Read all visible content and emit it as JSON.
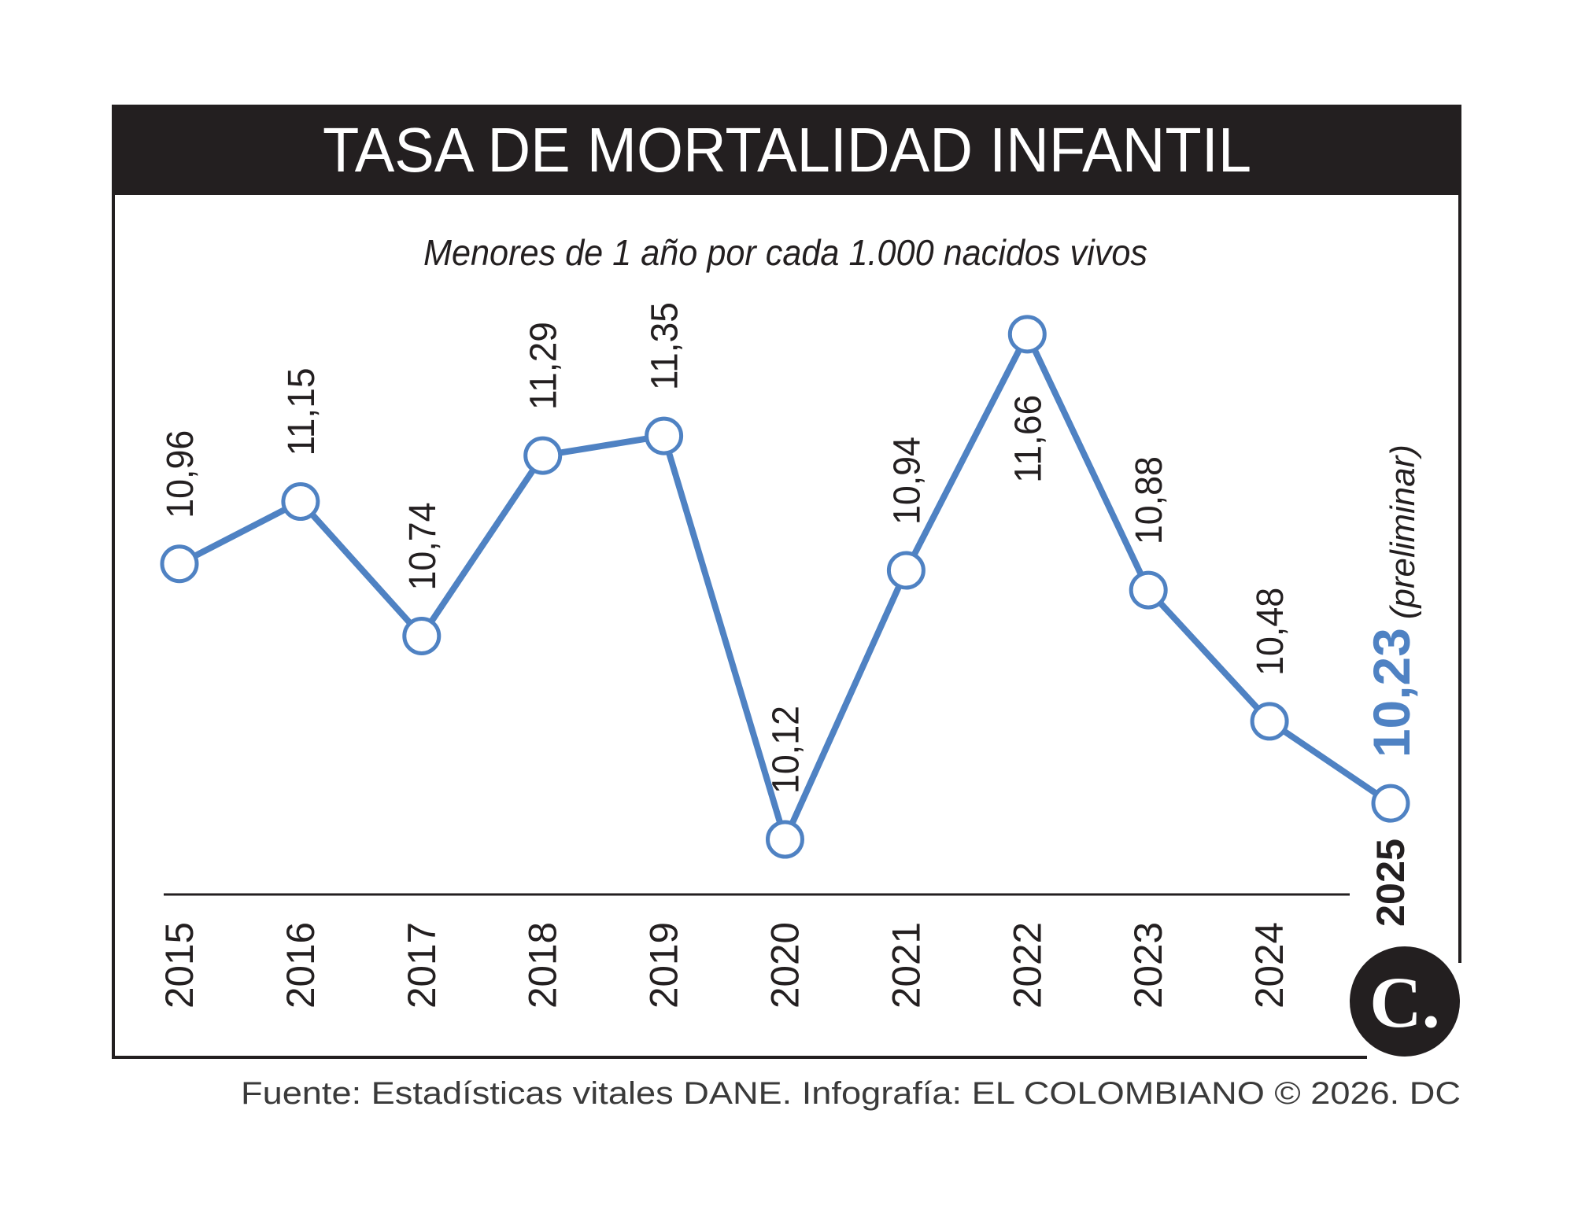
{
  "chart_data": {
    "type": "line",
    "title": "TASA DE MORTALIDAD INFANTIL",
    "subtitle": "Menores de 1 año por cada 1.000 nacidos vivos",
    "categories": [
      "2015",
      "2016",
      "2017",
      "2018",
      "2019",
      "2020",
      "2021",
      "2022",
      "2023",
      "2024",
      "2025"
    ],
    "values": [
      10.96,
      11.15,
      10.74,
      11.29,
      11.35,
      10.12,
      10.94,
      11.66,
      10.88,
      10.48,
      10.23
    ],
    "data_labels": [
      "10,96",
      "11,15",
      "10,74",
      "11,29",
      "11,35",
      "10,12",
      "10,94",
      "11,66",
      "10,88",
      "10,48",
      "10,23"
    ],
    "highlight_note": "(preliminar)",
    "grid": false,
    "legend": "none",
    "line_color": "#4f82c3",
    "header_color": "#231f20"
  },
  "footer": {
    "source": "Fuente: Estadísticas vitales DANE. Infografía: EL COLOMBIANO © 2026. DC"
  },
  "logo": {
    "text": "C."
  }
}
